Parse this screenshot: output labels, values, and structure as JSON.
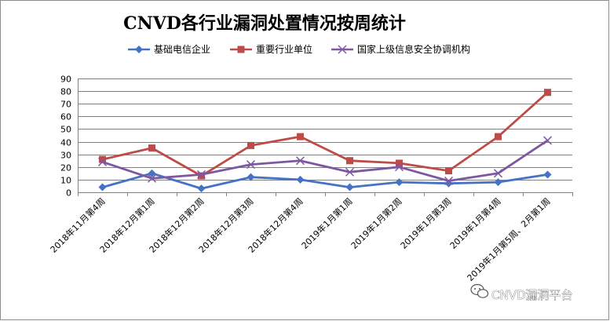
{
  "chart_data": {
    "type": "line",
    "title": "CNVD各行业漏洞处置情况按周统计",
    "xlabel": "",
    "ylabel": "",
    "ylim": [
      0,
      90
    ],
    "y_ticks": [
      0,
      10,
      20,
      30,
      40,
      50,
      60,
      70,
      80,
      90
    ],
    "grid": true,
    "legend_position": "top",
    "categories": [
      "2018年11月第4周",
      "2018年12月第1周",
      "2018年12月第2周",
      "2018年12月第3周",
      "2018年12月第4周",
      "2019年1月第1周",
      "2019年1月第2周",
      "2019年1月第3周",
      "2019年1月第4周",
      "2019年1月第5周、2月第1周"
    ],
    "series": [
      {
        "name": "基础电信企业",
        "color": "#4472c4",
        "marker": "diamond",
        "values": [
          4,
          15,
          3,
          12,
          10,
          4,
          8,
          7,
          8,
          14
        ]
      },
      {
        "name": "重要行业单位",
        "color": "#be4b48",
        "marker": "square",
        "values": [
          26,
          35,
          13,
          37,
          44,
          25,
          23,
          17,
          44,
          79
        ]
      },
      {
        "name": "国家上级信息安全协调机构",
        "color": "#7e57a2",
        "marker": "x",
        "values": [
          24,
          11,
          14,
          22,
          25,
          16,
          20,
          9,
          15,
          41
        ]
      }
    ]
  },
  "watermark": {
    "text": "CNVD漏洞平台",
    "icon": "wechat-icon"
  }
}
